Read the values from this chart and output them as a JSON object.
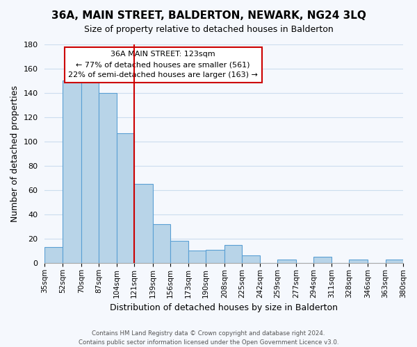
{
  "title": "36A, MAIN STREET, BALDERTON, NEWARK, NG24 3LQ",
  "subtitle": "Size of property relative to detached houses in Balderton",
  "xlabel": "Distribution of detached houses by size in Balderton",
  "ylabel": "Number of detached properties",
  "bin_edges": [
    35,
    52,
    70,
    87,
    104,
    121,
    139,
    156,
    173,
    190,
    208,
    225,
    242,
    259,
    277,
    294,
    311,
    328,
    346,
    363,
    380
  ],
  "counts": [
    13,
    150,
    150,
    140,
    107,
    65,
    32,
    18,
    10,
    11,
    15,
    6,
    0,
    3,
    0,
    5,
    0,
    3,
    0,
    3
  ],
  "bar_color": "#b8d4e8",
  "bar_edgecolor": "#5a9fd4",
  "vline_x": 121,
  "vline_color": "#cc0000",
  "annotation_title": "36A MAIN STREET: 123sqm",
  "annotation_line1": "← 77% of detached houses are smaller (561)",
  "annotation_line2": "22% of semi-detached houses are larger (163) →",
  "annotation_box_color": "#ffffff",
  "annotation_box_edge": "#cc0000",
  "ylim": [
    0,
    180
  ],
  "yticks": [
    0,
    20,
    40,
    60,
    80,
    100,
    120,
    140,
    160,
    180
  ],
  "tick_labels": [
    "35sqm",
    "52sqm",
    "70sqm",
    "87sqm",
    "104sqm",
    "121sqm",
    "139sqm",
    "156sqm",
    "173sqm",
    "190sqm",
    "208sqm",
    "225sqm",
    "242sqm",
    "259sqm",
    "277sqm",
    "294sqm",
    "311sqm",
    "328sqm",
    "346sqm",
    "363sqm",
    "380sqm"
  ],
  "footer_line1": "Contains HM Land Registry data © Crown copyright and database right 2024.",
  "footer_line2": "Contains public sector information licensed under the Open Government Licence v3.0.",
  "background_color": "#f5f8fd",
  "grid_color": "#ccddee"
}
